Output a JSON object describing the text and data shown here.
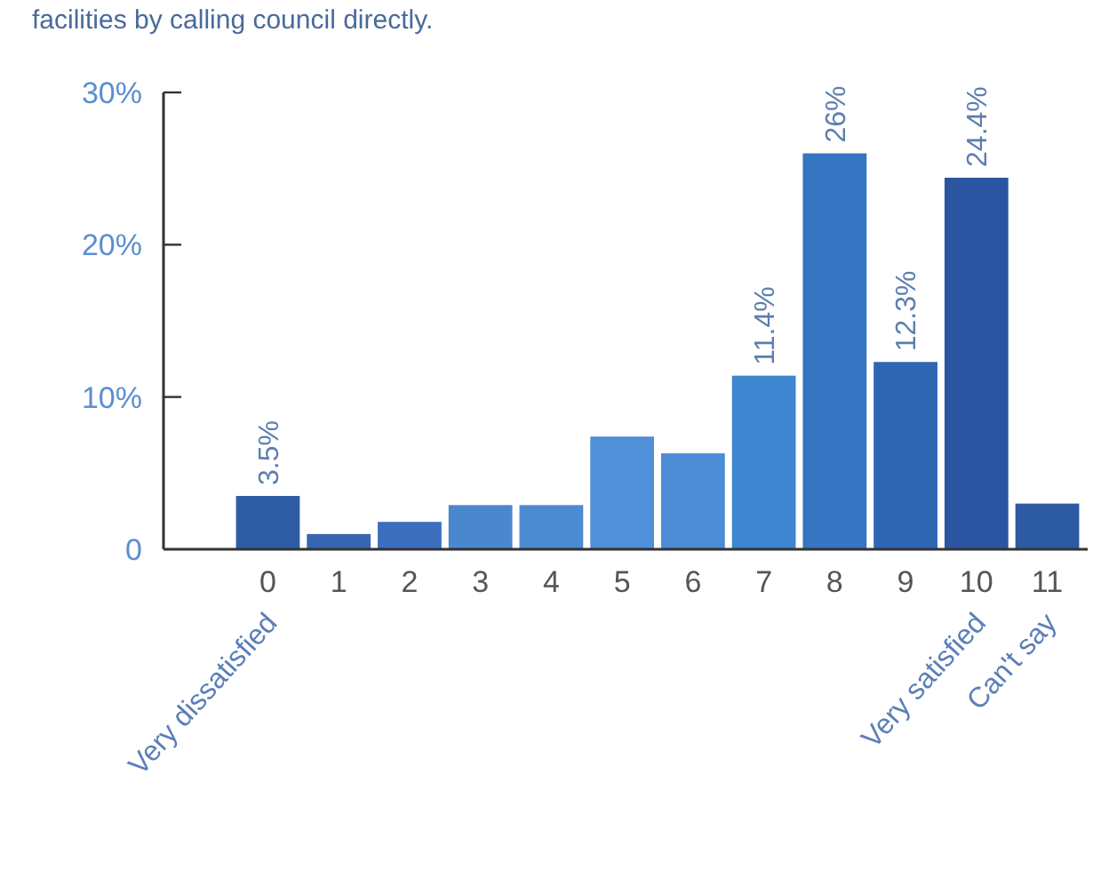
{
  "chart_data": {
    "type": "bar",
    "title": "facilities by calling council directly.",
    "categories": [
      "0",
      "1",
      "2",
      "3",
      "4",
      "5",
      "6",
      "7",
      "8",
      "9",
      "10",
      "11"
    ],
    "values": [
      3.5,
      1.0,
      1.8,
      2.9,
      2.9,
      7.4,
      6.3,
      11.4,
      26,
      12.3,
      24.4,
      3.0
    ],
    "colors": [
      "#2e5da6",
      "#3765b2",
      "#3b6fbd",
      "#4a87cf",
      "#4c8ad2",
      "#4f90d8",
      "#4c8cd4",
      "#3f86d0",
      "#3575c2",
      "#2f66b3",
      "#2a55a0",
      "#2c5aa3"
    ],
    "value_labels": [
      "3.5%",
      null,
      null,
      null,
      null,
      null,
      null,
      "11.4%",
      "26%",
      "12.3%",
      "24.4%",
      null
    ],
    "ylim": [
      0,
      30
    ],
    "yticks": [
      {
        "value": 0,
        "label": "0"
      },
      {
        "value": 10,
        "label": "10%"
      },
      {
        "value": 20,
        "label": "20%"
      },
      {
        "value": 30,
        "label": "30%"
      }
    ],
    "annotations": [
      "Very dissatisfied",
      "Very satisfied",
      "Can't say"
    ],
    "grid": false
  }
}
